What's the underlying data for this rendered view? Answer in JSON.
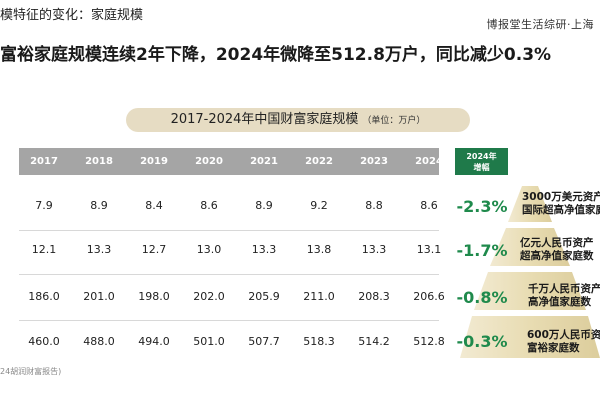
{
  "header": {
    "section_title": "模特征的变化：家庭规模",
    "brand": "博报堂生活综研·上海",
    "headline": "富裕家庭规模连续2年下降，2024年微降至512.8万户，同比减少0.3%"
  },
  "table": {
    "title": "2017-2024年中国财富家庭规模",
    "unit": "（单位：万户）",
    "years": [
      "2017",
      "2018",
      "2019",
      "2020",
      "2021",
      "2022",
      "2023",
      "2024"
    ],
    "growth_header_line1": "2024年",
    "growth_header_line2": "增幅",
    "rows": [
      {
        "values": [
          "7.9",
          "8.9",
          "8.4",
          "8.6",
          "8.9",
          "9.2",
          "8.8",
          "8.6"
        ],
        "growth": "-2.3%",
        "label_line1": "3000万美元资产",
        "label_line2": "国际超高净值家庭"
      },
      {
        "values": [
          "12.1",
          "13.3",
          "12.7",
          "13.0",
          "13.3",
          "13.8",
          "13.3",
          "13.1"
        ],
        "growth": "-1.7%",
        "label_line1": "亿元人民币资产",
        "label_line2": "超高净值家庭数"
      },
      {
        "values": [
          "186.0",
          "201.0",
          "198.0",
          "202.0",
          "205.9",
          "211.0",
          "208.3",
          "206.6"
        ],
        "growth": "-0.8%",
        "label_line1": "千万人民币资产",
        "label_line2": "高净值家庭数"
      },
      {
        "values": [
          "460.0",
          "488.0",
          "494.0",
          "501.0",
          "507.7",
          "518.3",
          "514.2",
          "512.8"
        ],
        "growth": "-0.3%",
        "label_line1": "600万人民币资产",
        "label_line2": "富裕家庭数"
      }
    ]
  },
  "footnote": "24胡润财富报告)",
  "colors": {
    "header_gray": "#a5a5a5",
    "growth_green": "#1f8a4c",
    "growth_header_bg": "#1f7a4a",
    "title_pill": "#e6dcc3",
    "pyramid_gold": "#e8dcb2"
  }
}
